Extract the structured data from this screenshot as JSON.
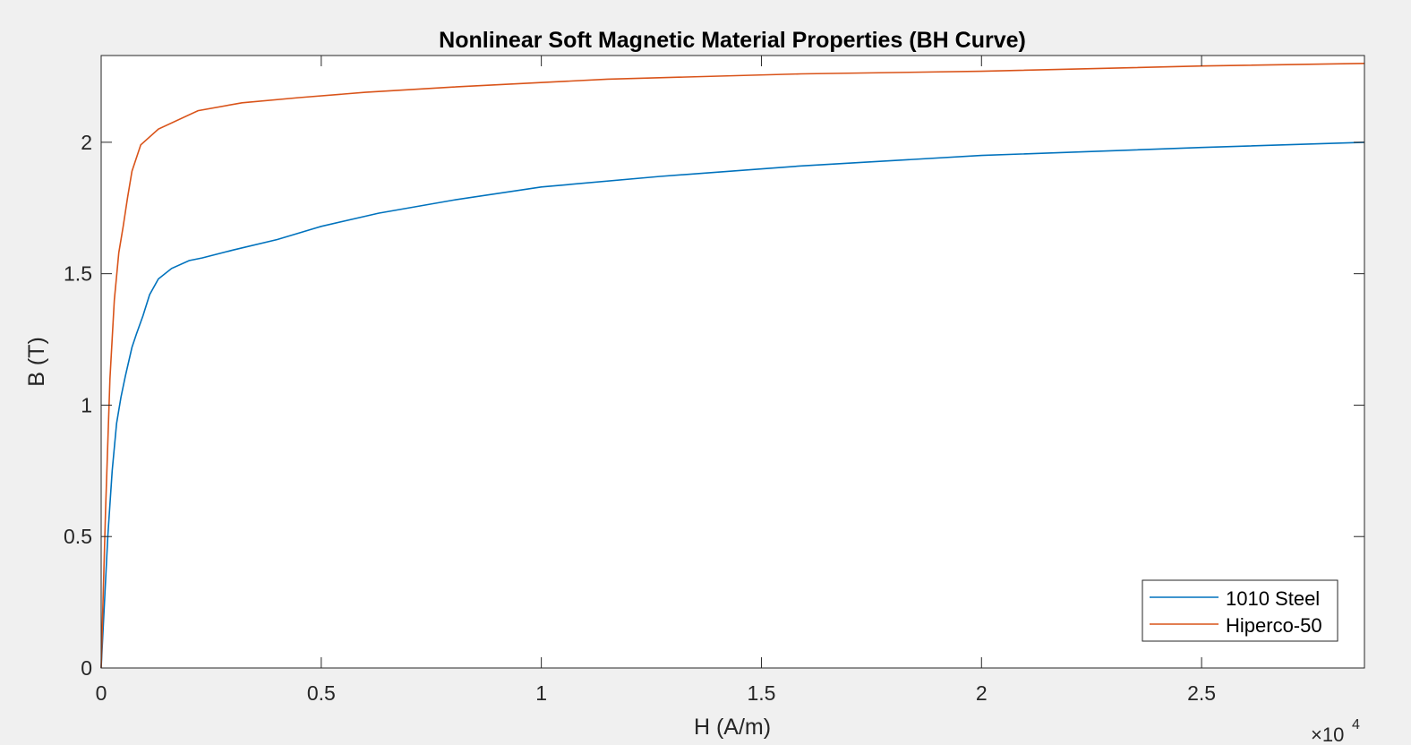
{
  "chart_data": {
    "type": "line",
    "title": "Nonlinear Soft Magnetic Material Properties (BH Curve)",
    "xlabel": "H (A/m)",
    "ylabel": "B (T)",
    "x_exponent_label": "×10",
    "x_exponent_power": "4",
    "xlim": [
      0,
      28700
    ],
    "ylim": [
      0,
      2.33
    ],
    "x_ticks": [
      0,
      5000,
      10000,
      15000,
      20000,
      25000
    ],
    "x_tick_labels": [
      "0",
      "0.5",
      "1",
      "1.5",
      "2",
      "2.5"
    ],
    "y_ticks": [
      0,
      0.5,
      1,
      1.5,
      2
    ],
    "y_tick_labels": [
      "0",
      "0.5",
      "1",
      "1.5",
      "2"
    ],
    "grid": false,
    "legend_position": "bottom-right",
    "series": [
      {
        "name": "1010 Steel",
        "color": "#0072BD",
        "x": [
          0,
          150,
          250,
          350,
          450,
          550,
          700,
          800,
          950,
          1100,
          1300,
          1600,
          2000,
          2300,
          3000,
          4000,
          5000,
          6300,
          8000,
          10000,
          12700,
          15900,
          20000,
          25000,
          28700
        ],
        "y": [
          0,
          0.5,
          0.75,
          0.93,
          1.03,
          1.11,
          1.22,
          1.27,
          1.34,
          1.42,
          1.48,
          1.52,
          1.55,
          1.56,
          1.59,
          1.63,
          1.68,
          1.73,
          1.78,
          1.83,
          1.87,
          1.91,
          1.95,
          1.98,
          2.0
        ]
      },
      {
        "name": "Hiperco-50",
        "color": "#D95319",
        "x": [
          0,
          100,
          200,
          300,
          400,
          500,
          600,
          700,
          900,
          1300,
          2200,
          3200,
          4500,
          6000,
          8000,
          11500,
          15900,
          20000,
          25000,
          28700
        ],
        "y": [
          0,
          0.6,
          1.1,
          1.4,
          1.58,
          1.68,
          1.79,
          1.89,
          1.99,
          2.05,
          2.12,
          2.15,
          2.17,
          2.19,
          2.21,
          2.24,
          2.26,
          2.27,
          2.29,
          2.3
        ]
      }
    ]
  }
}
